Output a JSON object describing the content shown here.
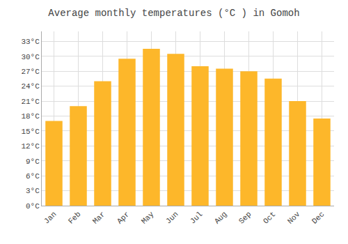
{
  "chart_data": {
    "type": "bar",
    "title": "Average monthly temperatures (°C ) in Gomoh",
    "categories": [
      "Jan",
      "Feb",
      "Mar",
      "Apr",
      "May",
      "Jun",
      "Jul",
      "Aug",
      "Sep",
      "Oct",
      "Nov",
      "Dec"
    ],
    "values": [
      17,
      20,
      25,
      29.5,
      31.5,
      30.5,
      28,
      27.5,
      27,
      25.5,
      21,
      17.5
    ],
    "color": "#FDB72A",
    "ylim": [
      0,
      35
    ],
    "yticks": [
      {
        "value": 0,
        "label": "0°C"
      },
      {
        "value": 3,
        "label": "3°C"
      },
      {
        "value": 6,
        "label": "6°C"
      },
      {
        "value": 9,
        "label": "9°C"
      },
      {
        "value": 12,
        "label": "12°C"
      },
      {
        "value": 15,
        "label": "15°C"
      },
      {
        "value": 18,
        "label": "18°C"
      },
      {
        "value": 21,
        "label": "21°C"
      },
      {
        "value": 24,
        "label": "24°C"
      },
      {
        "value": 27,
        "label": "27°C"
      },
      {
        "value": 30,
        "label": "30°C"
      },
      {
        "value": 33,
        "label": "33°C"
      }
    ],
    "grid": true
  }
}
